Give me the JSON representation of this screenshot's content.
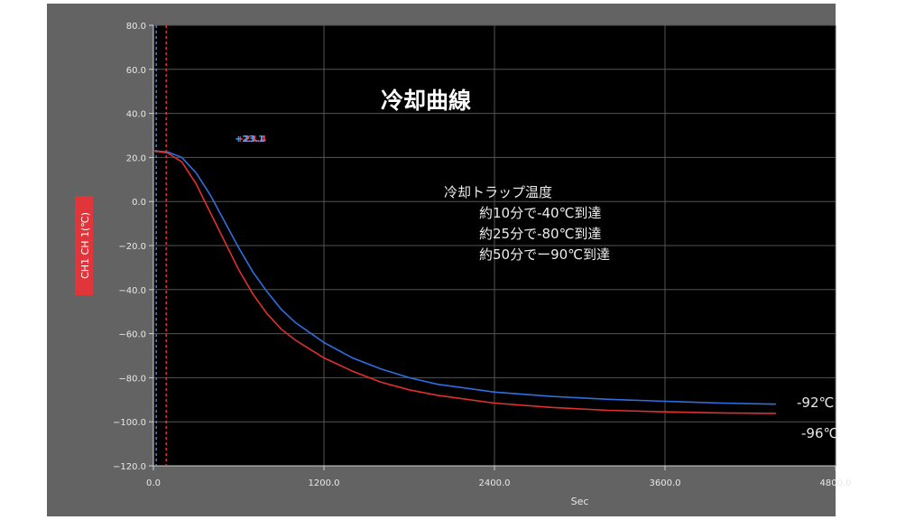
{
  "chart_data": {
    "type": "line",
    "title": "冷却曲線",
    "xlabel": "Sec",
    "ylabel": "CH1  CH 1(℃)",
    "xlim": [
      0,
      4800
    ],
    "ylim": [
      -120,
      80
    ],
    "x_ticks": [
      "0.0",
      "1200.0",
      "2400.0",
      "3600.0",
      "4800.0"
    ],
    "y_ticks": [
      "80.0",
      "60.0",
      "40.0",
      "20.0",
      "0.0",
      "−20.0",
      "−40.0",
      "−60.0",
      "−80.0",
      "−100.0",
      "−120.0"
    ],
    "y_tick_values": [
      80,
      60,
      40,
      20,
      0,
      -20,
      -40,
      -60,
      -80,
      -100,
      -120
    ],
    "x_tick_values": [
      0,
      1200,
      2400,
      3600,
      4800
    ],
    "grid": true,
    "cursors": [
      {
        "x": 20,
        "color": "#4fa2ff"
      },
      {
        "x": 90,
        "color": "#ff4a4a"
      }
    ],
    "cursor_readouts": {
      "blue": "+23.1",
      "red": "+23.4"
    },
    "series": [
      {
        "color": "#2f6fe0",
        "x": [
          0,
          100,
          200,
          300,
          400,
          500,
          600,
          700,
          800,
          900,
          1000,
          1200,
          1400,
          1600,
          1800,
          2000,
          2400,
          2800,
          3200,
          3600,
          4000,
          4380
        ],
        "y": [
          23,
          22.5,
          20,
          13,
          3,
          -9,
          -21,
          -32,
          -41,
          -49,
          -55,
          -64,
          -71,
          -76,
          -80,
          -83,
          -86.5,
          -88.5,
          -89.8,
          -90.7,
          -91.5,
          -92
        ]
      },
      {
        "color": "#e03030",
        "x": [
          0,
          100,
          200,
          300,
          400,
          500,
          600,
          700,
          800,
          900,
          1000,
          1200,
          1400,
          1600,
          1800,
          2000,
          2400,
          2800,
          3200,
          3600,
          4000,
          4380
        ],
        "y": [
          23,
          22,
          18,
          8,
          -5,
          -18,
          -31,
          -42,
          -51,
          -58,
          -63,
          -71,
          -77,
          -82,
          -85.5,
          -88,
          -91.5,
          -93.5,
          -94.8,
          -95.5,
          -96,
          -96.2
        ]
      }
    ],
    "annotations": {
      "heading": "冷却トラップ温度",
      "lines": [
        "約10分で-40℃到達",
        "約25分で-80℃到達",
        "約50分でー90℃到達"
      ],
      "end_blue": "-92℃",
      "end_red": "-96℃"
    }
  },
  "colors": {
    "frame_bg": "#636363",
    "plot_bg": "#000000",
    "grid": "#555555",
    "ylabel_badge": "#e0353b"
  }
}
